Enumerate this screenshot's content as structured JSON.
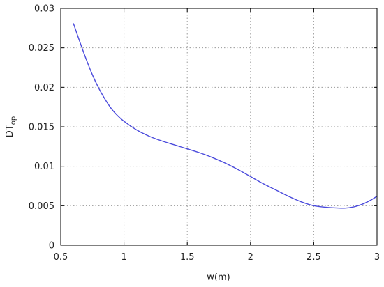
{
  "chart_data": {
    "type": "line",
    "title": "",
    "xlabel": "w(m)",
    "ylabel_main": "DT",
    "ylabel_sub": "op",
    "xlim": [
      0.5,
      3
    ],
    "ylim": [
      0,
      0.03
    ],
    "xticks": [
      0.5,
      1,
      1.5,
      2,
      2.5,
      3
    ],
    "xtick_labels": [
      "0.5",
      "1",
      "1.5",
      "2",
      "2.5",
      "3"
    ],
    "yticks": [
      0,
      0.005,
      0.01,
      0.015,
      0.02,
      0.025,
      0.03
    ],
    "ytick_labels": [
      "0",
      "0.005",
      "0.01",
      "0.015",
      "0.02",
      "0.025",
      "0.03"
    ],
    "grid": true,
    "line_color": "#4b4bdc",
    "series": [
      {
        "x": [
          0.6,
          0.65,
          0.7,
          0.75,
          0.8,
          0.85,
          0.9,
          0.95,
          1.0,
          1.1,
          1.2,
          1.3,
          1.4,
          1.5,
          1.6,
          1.7,
          1.8,
          1.9,
          2.0,
          2.1,
          2.2,
          2.3,
          2.4,
          2.5,
          2.6,
          2.7,
          2.75,
          2.8,
          2.85,
          2.9,
          2.95,
          3.0
        ],
        "y": [
          0.0281,
          0.0258,
          0.0236,
          0.0216,
          0.0199,
          0.0185,
          0.0173,
          0.0164,
          0.0157,
          0.0146,
          0.0138,
          0.0132,
          0.0127,
          0.0122,
          0.0117,
          0.0111,
          0.0104,
          0.0096,
          0.0087,
          0.0078,
          0.007,
          0.0062,
          0.0055,
          0.005,
          0.0048,
          0.0047,
          0.0047,
          0.0048,
          0.005,
          0.0053,
          0.0057,
          0.0062
        ]
      }
    ]
  }
}
